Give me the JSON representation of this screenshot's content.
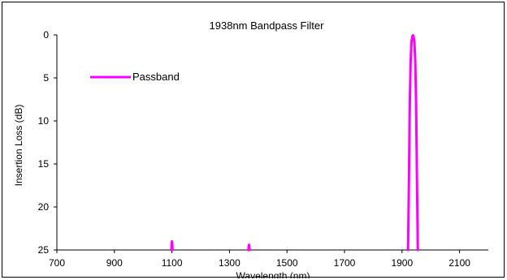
{
  "chart_data": {
    "type": "line",
    "title": "1938nm Bandpass Filter",
    "xlabel": "Wavelength (nm)",
    "ylabel": "Insertion Loss (dB)",
    "xlim": [
      700,
      2200
    ],
    "ylim": [
      0,
      25
    ],
    "y_inverted": true,
    "x_ticks": [
      700,
      900,
      1100,
      1300,
      1500,
      1700,
      1900,
      2100
    ],
    "y_ticks": [
      0,
      5,
      10,
      15,
      20,
      25
    ],
    "grid": false,
    "legend_position": "top-left",
    "series": [
      {
        "name": "Passband",
        "color": "#ff00ff",
        "segments": [
          {
            "x": [
              1098,
              1099,
              1100,
              1101,
              1102
            ],
            "y": [
              25,
              24.3,
              24.0,
              24.3,
              25
            ]
          },
          {
            "x": [
              1366,
              1367,
              1368,
              1369,
              1370
            ],
            "y": [
              25,
              24.6,
              24.4,
              24.6,
              25
            ]
          },
          {
            "x": [
              1921,
              1924,
              1927,
              1930,
              1933,
              1936,
              1938,
              1940,
              1943,
              1946,
              1949,
              1952,
              1955
            ],
            "y": [
              25,
              17,
              8,
              3,
              0.8,
              0.15,
              0.05,
              0.15,
              0.8,
              3,
              8,
              17,
              25
            ]
          }
        ]
      }
    ]
  }
}
